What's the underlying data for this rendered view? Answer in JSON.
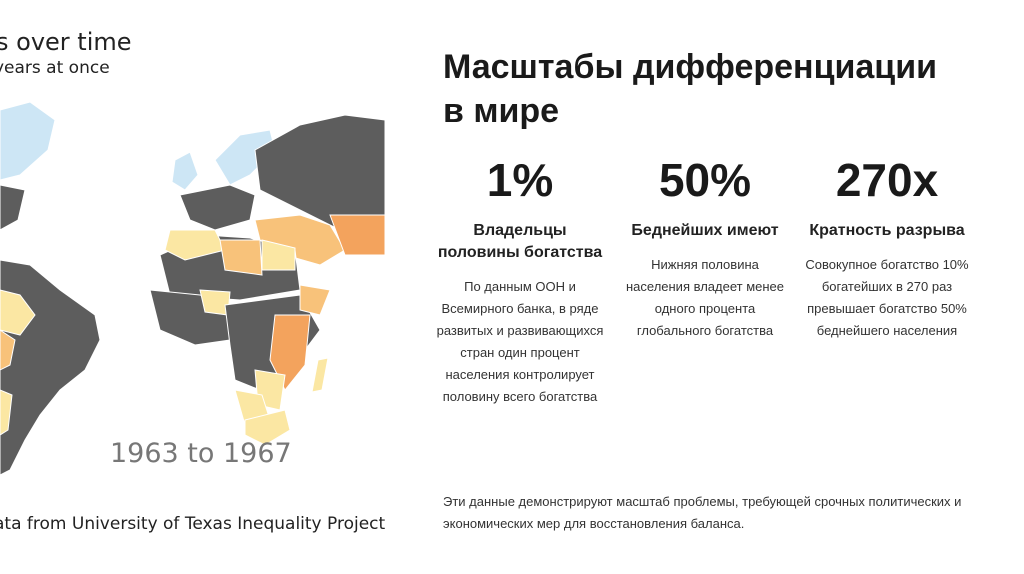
{
  "map": {
    "title": "s over time",
    "subtitle": "years at once",
    "years": "1963 to 1967",
    "source": "ata from University of Texas Inequality Project",
    "colors": {
      "no_data": "#5d5d5d",
      "low": "#cde6f5",
      "mid_low": "#fbe7a3",
      "mid": "#f8c27a",
      "high": "#f3a35d"
    }
  },
  "slide": {
    "title": "Масштабы дифференциации\nв мире",
    "stats": [
      {
        "big": "1%",
        "heading": "Владельцы половины богатства",
        "body": "По данным ООН и Всемирного банка, в ряде развитых и развивающихся стран один процент населения контролирует половину всего богатства"
      },
      {
        "big": "50%",
        "heading": "Беднейших имеют",
        "body": "Нижняя половина населения владеет менее одного процента глобального богатства"
      },
      {
        "big": "270x",
        "heading": "Кратность разрыва",
        "body": "Совокупное богатство 10% богатейших в 270 раз превышает богатство 50% беднейшего населения"
      }
    ],
    "footer": "Эти данные демонстрируют масштаб проблемы, требующей срочных политических и экономических мер для восстановления баланса."
  }
}
